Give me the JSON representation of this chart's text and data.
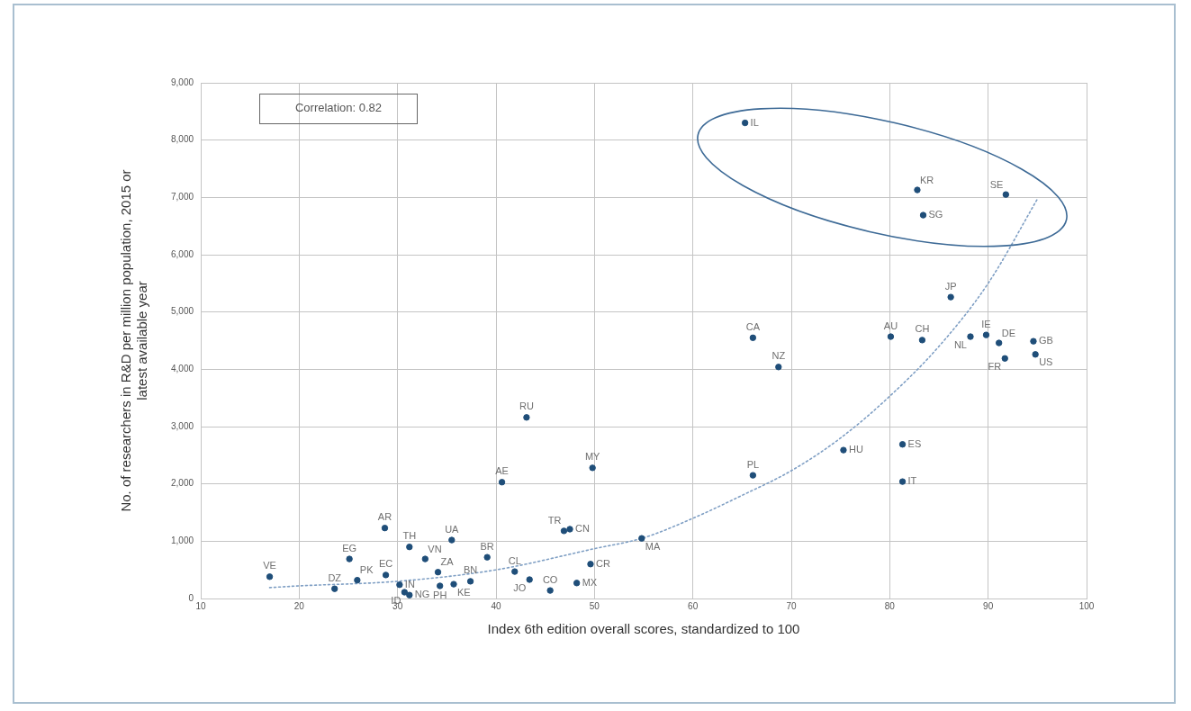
{
  "chart_data": {
    "type": "scatter",
    "xlabel": "Index 6th edition overall scores, standardized to 100",
    "ylabel": "No. of researchers in R&D per million population, 2015 or latest available year",
    "xlim": [
      10,
      100
    ],
    "xticks": [
      10,
      20,
      30,
      40,
      50,
      60,
      70,
      80,
      90,
      100
    ],
    "ylim": [
      0,
      9000
    ],
    "yticks": [
      {
        "value": 0,
        "label": "0"
      },
      {
        "value": 1000,
        "label": "1,000"
      },
      {
        "value": 2000,
        "label": "2,000"
      },
      {
        "value": 3000,
        "label": "3,000"
      },
      {
        "value": 4000,
        "label": "4,000"
      },
      {
        "value": 5000,
        "label": "5,000"
      },
      {
        "value": 6000,
        "label": "6,000"
      },
      {
        "value": 7000,
        "label": "7,000"
      },
      {
        "value": 8000,
        "label": "8,000"
      },
      {
        "value": 9000,
        "label": "9,000"
      }
    ],
    "grid": true,
    "legend": false,
    "marker": "circle",
    "annotations": [
      "Correlation: 0.82"
    ],
    "series": [
      {
        "type": "scatter",
        "color": "#1f4e79",
        "x": [
          17.0,
          23.6,
          25.1,
          25.9,
          28.7,
          28.8,
          30.2,
          30.7,
          31.2,
          31.2,
          32.8,
          35.5,
          34.1,
          34.3,
          35.7,
          37.4,
          39.1,
          41.9,
          43.4,
          45.5,
          46.9,
          47.5,
          48.2,
          49.6,
          49.8,
          40.6,
          43.1,
          54.8,
          66.1,
          66.1,
          68.7,
          75.3,
          80.1,
          81.3,
          81.3,
          83.3,
          88.2,
          89.8,
          91.1,
          91.7,
          94.6,
          94.8,
          86.2,
          65.3,
          82.8,
          83.4,
          91.8
        ],
        "values": [
          380,
          170,
          690,
          320,
          1230,
          410,
          240,
          110,
          60,
          900,
          690,
          1020,
          460,
          220,
          250,
          300,
          720,
          470,
          330,
          140,
          1180,
          1210,
          270,
          600,
          2280,
          2030,
          3160,
          1050,
          4550,
          2150,
          4040,
          2590,
          4570,
          2690,
          2040,
          4510,
          4570,
          4600,
          4460,
          4190,
          4490,
          4260,
          5260,
          8300,
          7130,
          6690,
          7050
        ],
        "value_labels": [
          "VE",
          "DZ",
          "EG",
          "PK",
          "AR",
          "EC",
          "IN",
          "ID",
          "NG",
          "TH",
          "VN",
          "UA",
          "ZA",
          "PH",
          "KE",
          "BN",
          "BR",
          "CL",
          "JO",
          "CO",
          "TR",
          "CN",
          "MX",
          "CR",
          "MY",
          "AE",
          "RU",
          "MA",
          "CA",
          "PL",
          "NZ",
          "HU",
          "AU",
          "ES",
          "IT",
          "CH",
          "NL",
          "IE",
          "DE",
          "FR",
          "GB",
          "US",
          "JP",
          "IL",
          "KR",
          "SG",
          "SE"
        ]
      },
      {
        "type": "line",
        "color": "#7f9fc4",
        "line_style": "dotted",
        "marker": "none",
        "x": [
          17,
          20,
          30,
          40,
          50,
          55,
          60,
          65,
          70,
          75,
          80,
          85,
          90,
          95
        ],
        "values": [
          190,
          220,
          300,
          500,
          870,
          1060,
          1400,
          1800,
          2230,
          2800,
          3530,
          4400,
          5500,
          6970
        ]
      }
    ]
  }
}
